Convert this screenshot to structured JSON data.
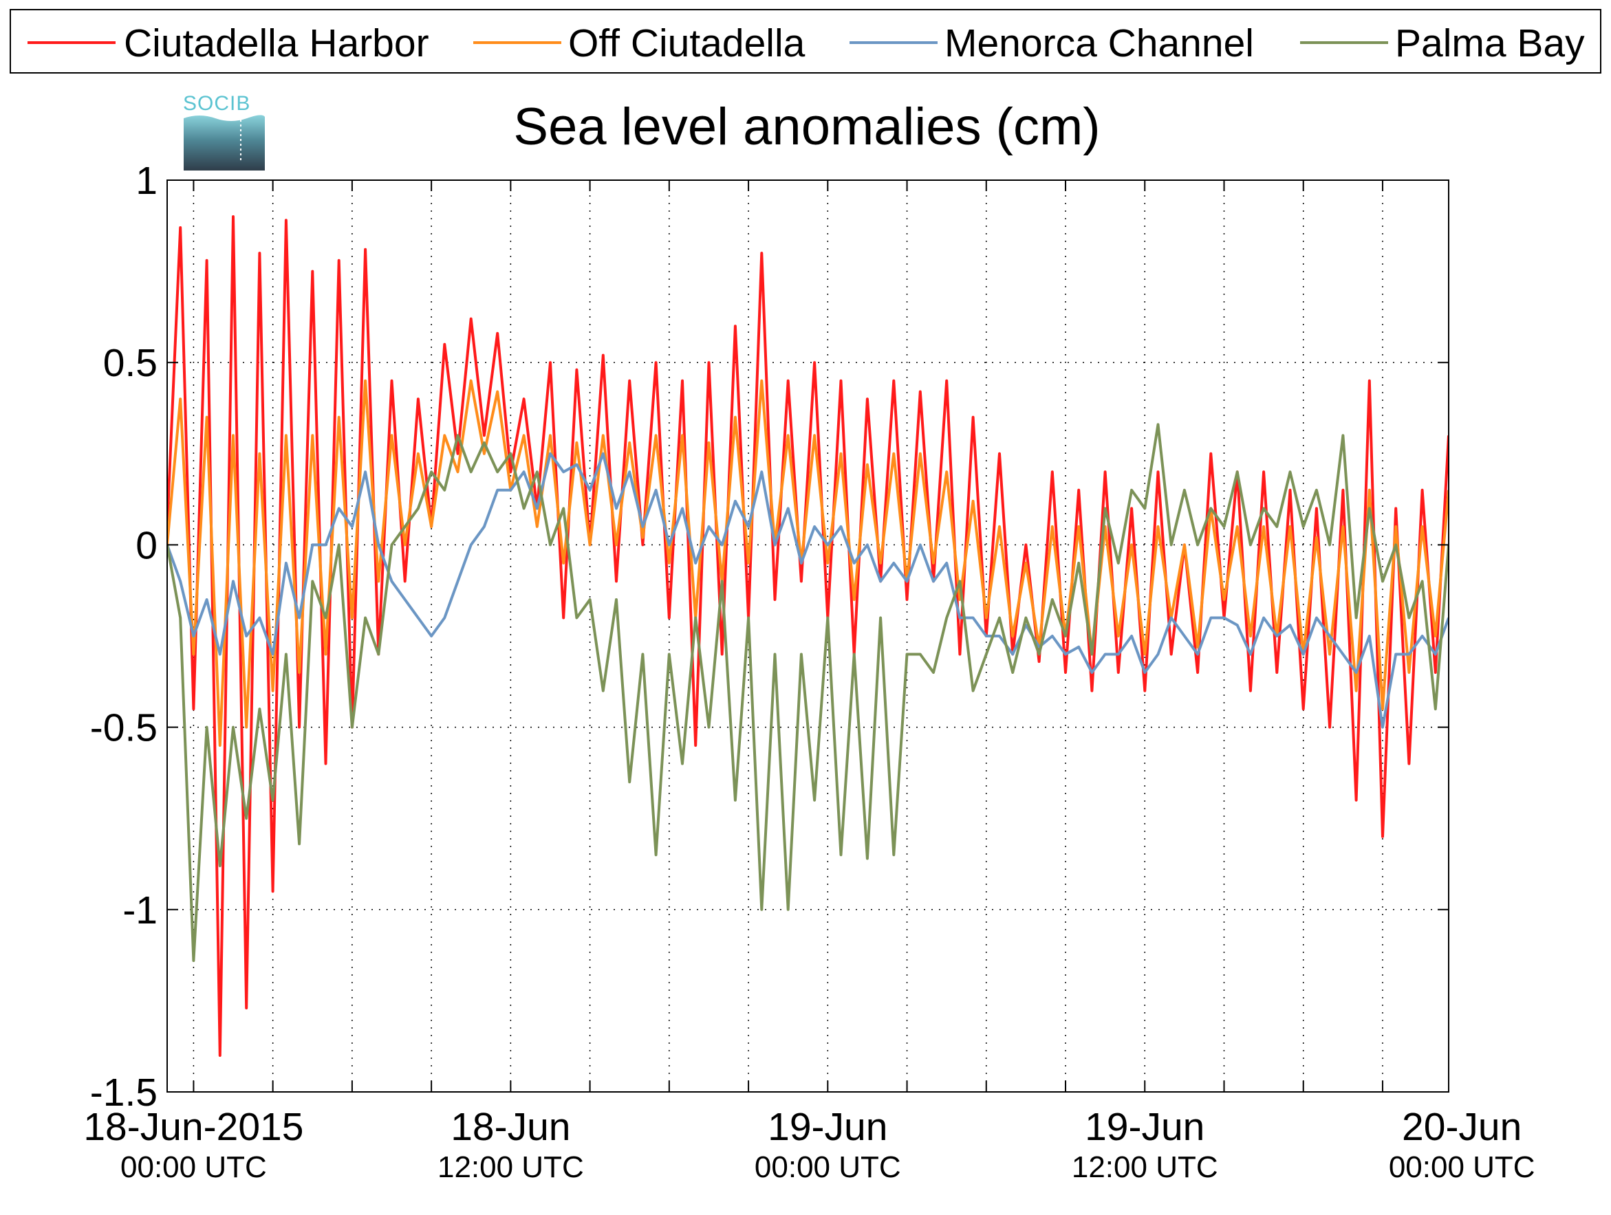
{
  "chart_data": {
    "type": "line",
    "title": "Sea level anomalies (cm)",
    "logo_text": "SOCIB",
    "ylim": [
      -1.5,
      1
    ],
    "y_ticks": [
      "1",
      "0.5",
      "0",
      "-0.5",
      "-1",
      "-1.5"
    ],
    "y_tick_values": [
      1,
      0.5,
      0,
      -0.5,
      -1,
      -1.5
    ],
    "xlim_hours": [
      -1,
      47.5
    ],
    "x_unit": "hours from 18-Jun-2015 00:00 UTC",
    "x_ticks": [
      {
        "hour": 0,
        "label": "18-Jun-2015",
        "sublabel": "00:00 UTC"
      },
      {
        "hour": 12,
        "label": "18-Jun",
        "sublabel": "12:00 UTC"
      },
      {
        "hour": 24,
        "label": "19-Jun",
        "sublabel": "00:00 UTC"
      },
      {
        "hour": 36,
        "label": "19-Jun",
        "sublabel": "12:00 UTC"
      },
      {
        "hour": 48,
        "label": "20-Jun",
        "sublabel": "00:00 UTC"
      }
    ],
    "grid_hours": [
      0,
      3,
      6,
      9,
      12,
      15,
      18,
      21,
      24,
      27,
      30,
      33,
      36,
      39,
      42,
      45
    ],
    "grid": true,
    "legend_position": "top",
    "series": [
      {
        "name": "Ciutadella Harbor",
        "color": "#ff1a1a",
        "x": [
          -1,
          -0.5,
          0,
          0.5,
          1,
          1.5,
          2,
          2.5,
          3,
          3.5,
          4,
          4.5,
          5,
          5.5,
          6,
          6.5,
          7,
          7.5,
          8,
          8.5,
          9,
          9.5,
          10,
          10.5,
          11,
          11.5,
          12,
          12.5,
          13,
          13.5,
          14,
          14.5,
          15,
          15.5,
          16,
          16.5,
          17,
          17.5,
          18,
          18.5,
          19,
          19.5,
          20,
          20.5,
          21,
          21.5,
          22,
          22.5,
          23,
          23.5,
          24,
          24.5,
          25,
          25.5,
          26,
          26.5,
          27,
          27.5,
          28,
          28.5,
          29,
          29.5,
          30,
          30.5,
          31,
          31.5,
          32,
          32.5,
          33,
          33.5,
          34,
          34.5,
          35,
          35.5,
          36,
          36.5,
          37,
          37.5,
          38,
          38.5,
          39,
          39.5,
          40,
          40.5,
          41,
          41.5,
          42,
          42.5,
          43,
          43.5,
          44,
          44.5,
          45,
          45.5,
          46,
          46.5,
          47,
          47.5
        ],
        "y": [
          0.05,
          0.87,
          -0.45,
          0.78,
          -1.4,
          0.9,
          -1.27,
          0.8,
          -0.95,
          0.89,
          -0.5,
          0.75,
          -0.6,
          0.78,
          -0.5,
          0.81,
          -0.3,
          0.45,
          -0.1,
          0.4,
          0.05,
          0.55,
          0.25,
          0.62,
          0.3,
          0.58,
          0.2,
          0.4,
          0.1,
          0.5,
          -0.2,
          0.48,
          0.0,
          0.52,
          -0.1,
          0.45,
          0.0,
          0.5,
          -0.2,
          0.45,
          -0.55,
          0.5,
          -0.3,
          0.6,
          -0.2,
          0.8,
          -0.15,
          0.45,
          -0.1,
          0.5,
          -0.2,
          0.45,
          -0.3,
          0.4,
          -0.1,
          0.45,
          -0.15,
          0.42,
          -0.1,
          0.45,
          -0.3,
          0.35,
          -0.25,
          0.25,
          -0.3,
          0.0,
          -0.32,
          0.2,
          -0.35,
          0.15,
          -0.4,
          0.2,
          -0.35,
          0.1,
          -0.4,
          0.2,
          -0.3,
          0.0,
          -0.35,
          0.25,
          -0.2,
          0.2,
          -0.4,
          0.2,
          -0.35,
          0.15,
          -0.45,
          0.1,
          -0.5,
          0.15,
          -0.7,
          0.45,
          -0.8,
          0.1,
          -0.6,
          0.15,
          -0.35,
          0.3
        ]
      },
      {
        "name": "Off Ciutadella",
        "color": "#ff8c1a",
        "x": [
          -1,
          -0.5,
          0,
          0.5,
          1,
          1.5,
          2,
          2.5,
          3,
          3.5,
          4,
          4.5,
          5,
          5.5,
          6,
          6.5,
          7,
          7.5,
          8,
          8.5,
          9,
          9.5,
          10,
          10.5,
          11,
          11.5,
          12,
          12.5,
          13,
          13.5,
          14,
          14.5,
          15,
          15.5,
          16,
          16.5,
          17,
          17.5,
          18,
          18.5,
          19,
          19.5,
          20,
          20.5,
          21,
          21.5,
          22,
          22.5,
          23,
          23.5,
          24,
          24.5,
          25,
          25.5,
          26,
          26.5,
          27,
          27.5,
          28,
          28.5,
          29,
          29.5,
          30,
          30.5,
          31,
          31.5,
          32,
          32.5,
          33,
          33.5,
          34,
          34.5,
          35,
          35.5,
          36,
          36.5,
          37,
          37.5,
          38,
          38.5,
          39,
          39.5,
          40,
          40.5,
          41,
          41.5,
          42,
          42.5,
          43,
          43.5,
          44,
          44.5,
          45,
          45.5,
          46,
          46.5,
          47,
          47.5
        ],
        "y": [
          0.0,
          0.4,
          -0.3,
          0.35,
          -0.55,
          0.3,
          -0.5,
          0.25,
          -0.4,
          0.3,
          -0.35,
          0.3,
          -0.3,
          0.35,
          -0.2,
          0.45,
          -0.1,
          0.3,
          0.0,
          0.25,
          0.05,
          0.3,
          0.2,
          0.45,
          0.25,
          0.42,
          0.15,
          0.3,
          0.05,
          0.3,
          -0.05,
          0.28,
          0.0,
          0.3,
          0.0,
          0.28,
          0.02,
          0.3,
          -0.05,
          0.3,
          -0.2,
          0.28,
          -0.1,
          0.35,
          -0.05,
          0.45,
          0.0,
          0.3,
          -0.05,
          0.3,
          -0.05,
          0.25,
          -0.15,
          0.22,
          -0.05,
          0.25,
          -0.1,
          0.25,
          -0.05,
          0.2,
          -0.15,
          0.12,
          -0.2,
          0.05,
          -0.25,
          -0.05,
          -0.28,
          0.05,
          -0.25,
          0.05,
          -0.3,
          0.05,
          -0.25,
          0.0,
          -0.3,
          0.05,
          -0.2,
          0.0,
          -0.28,
          0.1,
          -0.15,
          0.05,
          -0.25,
          0.05,
          -0.25,
          0.05,
          -0.3,
          0.02,
          -0.3,
          0.05,
          -0.4,
          0.15,
          -0.45,
          0.05,
          -0.35,
          0.05,
          -0.25,
          0.15
        ]
      },
      {
        "name": "Menorca Channel",
        "color": "#6b96c4",
        "x": [
          -1,
          -0.5,
          0,
          0.5,
          1,
          1.5,
          2,
          2.5,
          3,
          3.5,
          4,
          4.5,
          5,
          5.5,
          6,
          6.5,
          7,
          7.5,
          8,
          8.5,
          9,
          9.5,
          10,
          10.5,
          11,
          11.5,
          12,
          12.5,
          13,
          13.5,
          14,
          14.5,
          15,
          15.5,
          16,
          16.5,
          17,
          17.5,
          18,
          18.5,
          19,
          19.5,
          20,
          20.5,
          21,
          21.5,
          22,
          22.5,
          23,
          23.5,
          24,
          24.5,
          25,
          25.5,
          26,
          26.5,
          27,
          27.5,
          28,
          28.5,
          29,
          29.5,
          30,
          30.5,
          31,
          31.5,
          32,
          32.5,
          33,
          33.5,
          34,
          34.5,
          35,
          35.5,
          36,
          36.5,
          37,
          37.5,
          38,
          38.5,
          39,
          39.5,
          40,
          40.5,
          41,
          41.5,
          42,
          42.5,
          43,
          43.5,
          44,
          44.5,
          45,
          45.5,
          46,
          46.5,
          47,
          47.5
        ],
        "y": [
          0.0,
          -0.1,
          -0.25,
          -0.15,
          -0.3,
          -0.1,
          -0.25,
          -0.2,
          -0.3,
          -0.05,
          -0.2,
          0.0,
          0.0,
          0.1,
          0.05,
          0.2,
          0.0,
          -0.1,
          -0.15,
          -0.2,
          -0.25,
          -0.2,
          -0.1,
          0.0,
          0.05,
          0.15,
          0.15,
          0.2,
          0.1,
          0.25,
          0.2,
          0.22,
          0.15,
          0.25,
          0.1,
          0.2,
          0.05,
          0.15,
          0.0,
          0.1,
          -0.05,
          0.05,
          0.0,
          0.12,
          0.05,
          0.2,
          0.0,
          0.1,
          -0.05,
          0.05,
          0.0,
          0.05,
          -0.05,
          0.0,
          -0.1,
          -0.05,
          -0.1,
          0.0,
          -0.1,
          -0.05,
          -0.2,
          -0.2,
          -0.25,
          -0.25,
          -0.3,
          -0.22,
          -0.28,
          -0.25,
          -0.3,
          -0.28,
          -0.35,
          -0.3,
          -0.3,
          -0.25,
          -0.35,
          -0.3,
          -0.2,
          -0.25,
          -0.3,
          -0.2,
          -0.2,
          -0.22,
          -0.3,
          -0.2,
          -0.25,
          -0.22,
          -0.3,
          -0.2,
          -0.25,
          -0.3,
          -0.35,
          -0.25,
          -0.5,
          -0.3,
          -0.3,
          -0.25,
          -0.3,
          -0.2
        ]
      },
      {
        "name": "Palma Bay",
        "color": "#7c9257",
        "x": [
          -1,
          -0.5,
          0,
          0.5,
          1,
          1.5,
          2,
          2.5,
          3,
          3.5,
          4,
          4.5,
          5,
          5.5,
          6,
          6.5,
          7,
          7.5,
          8,
          8.5,
          9,
          9.5,
          10,
          10.5,
          11,
          11.5,
          12,
          12.5,
          13,
          13.5,
          14,
          14.5,
          15,
          15.5,
          16,
          16.5,
          17,
          17.5,
          18,
          18.5,
          19,
          19.5,
          20,
          20.5,
          21,
          21.5,
          22,
          22.5,
          23,
          23.5,
          24,
          24.5,
          25,
          25.5,
          26,
          26.5,
          27,
          27.5,
          28,
          28.5,
          29,
          29.5,
          30,
          30.5,
          31,
          31.5,
          32,
          32.5,
          33,
          33.5,
          34,
          34.5,
          35,
          35.5,
          36,
          36.5,
          37,
          37.5,
          38,
          38.5,
          39,
          39.5,
          40,
          40.5,
          41,
          41.5,
          42,
          42.5,
          43,
          43.5,
          44,
          44.5,
          45,
          45.5,
          46,
          46.5,
          47,
          47.5
        ],
        "y": [
          0.0,
          -0.2,
          -1.14,
          -0.5,
          -0.88,
          -0.5,
          -0.75,
          -0.45,
          -0.7,
          -0.3,
          -0.82,
          -0.1,
          -0.2,
          0.0,
          -0.5,
          -0.2,
          -0.3,
          0.0,
          0.05,
          0.1,
          0.2,
          0.15,
          0.3,
          0.2,
          0.28,
          0.2,
          0.25,
          0.1,
          0.2,
          0.0,
          0.1,
          -0.2,
          -0.15,
          -0.4,
          -0.15,
          -0.65,
          -0.3,
          -0.85,
          -0.3,
          -0.6,
          -0.2,
          -0.5,
          -0.1,
          -0.7,
          -0.2,
          -1.0,
          -0.3,
          -1.0,
          -0.3,
          -0.7,
          -0.2,
          -0.85,
          -0.3,
          -0.86,
          -0.2,
          -0.85,
          -0.3,
          -0.3,
          -0.35,
          -0.2,
          -0.1,
          -0.4,
          -0.3,
          -0.2,
          -0.35,
          -0.2,
          -0.3,
          -0.15,
          -0.25,
          -0.05,
          -0.3,
          0.1,
          -0.05,
          0.15,
          0.1,
          0.33,
          0.0,
          0.15,
          0.0,
          0.1,
          0.05,
          0.2,
          0.0,
          0.1,
          0.05,
          0.2,
          0.05,
          0.15,
          0.0,
          0.3,
          -0.2,
          0.1,
          -0.1,
          0.0,
          -0.2,
          -0.1,
          -0.45,
          0.0
        ]
      }
    ]
  }
}
